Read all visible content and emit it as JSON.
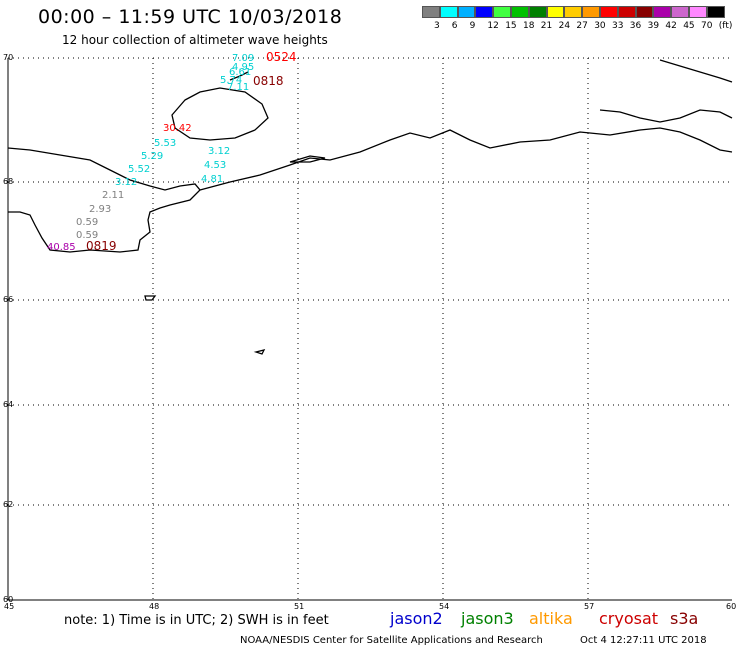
{
  "header": {
    "title": "00:00 – 11:59 UTC 10/03/2018",
    "subtitle": "12 hour collection of altimeter wave heights"
  },
  "legend": {
    "colors": [
      "#808080",
      "#00ffff",
      "#00b0ff",
      "#0000ff",
      "#40ff40",
      "#00c000",
      "#008000",
      "#ffff00",
      "#ffcc00",
      "#ff9900",
      "#ff0000",
      "#cc0000",
      "#880000",
      "#aa00aa",
      "#cc66cc",
      "#ff88ff",
      "#000000"
    ],
    "labels": [
      "3",
      "6",
      "9",
      "12",
      "15",
      "18",
      "21",
      "24",
      "27",
      "30",
      "33",
      "36",
      "39",
      "42",
      "45",
      "70",
      "(ft)"
    ]
  },
  "axes": {
    "lat_labels": [
      "70",
      "68",
      "66",
      "64",
      "62",
      "60"
    ],
    "lon_labels": [
      "45",
      "48",
      "51",
      "54",
      "57",
      "60"
    ]
  },
  "observations": [
    {
      "text": "7.09",
      "color": "#00d0d0"
    },
    {
      "text": "4.95",
      "color": "#00d0d0"
    },
    {
      "text": "6.61",
      "color": "#00d0d0"
    },
    {
      "text": "5.74",
      "color": "#00d0d0"
    },
    {
      "text": "7.11",
      "color": "#00d0d0"
    },
    {
      "text": "0524",
      "color": "#ff0000"
    },
    {
      "text": "0818",
      "color": "#880000"
    },
    {
      "text": "30.42",
      "color": "#ff0000"
    },
    {
      "text": "5.53",
      "color": "#00d0d0"
    },
    {
      "text": "5.29",
      "color": "#00d0d0"
    },
    {
      "text": "3.12",
      "color": "#00d0d0"
    },
    {
      "text": "5.52",
      "color": "#00d0d0"
    },
    {
      "text": "4.53",
      "color": "#00d0d0"
    },
    {
      "text": "3.12",
      "color": "#00d0d0"
    },
    {
      "text": "4.81",
      "color": "#00d0d0"
    },
    {
      "text": "2.11",
      "color": "#808080"
    },
    {
      "text": "2.93",
      "color": "#808080"
    },
    {
      "text": "0.59",
      "color": "#808080"
    },
    {
      "text": "0.59",
      "color": "#808080"
    },
    {
      "text": "40.85",
      "color": "#aa00aa"
    },
    {
      "text": "0819",
      "color": "#880000"
    }
  ],
  "footer": {
    "note": "note: 1) Time is in UTC; 2) SWH is in feet",
    "satellites": [
      {
        "name": "jason2",
        "color": "#0000cc"
      },
      {
        "name": "jason3",
        "color": "#008000"
      },
      {
        "name": "altika",
        "color": "#ff9900"
      },
      {
        "name": "cryosat",
        "color": "#cc0000"
      },
      {
        "name": "s3a",
        "color": "#880000"
      }
    ],
    "credit": "NOAA/NESDIS Center for Satellite Applications and Research",
    "timestamp": "Oct  4 12:27:11 UTC 2018"
  }
}
